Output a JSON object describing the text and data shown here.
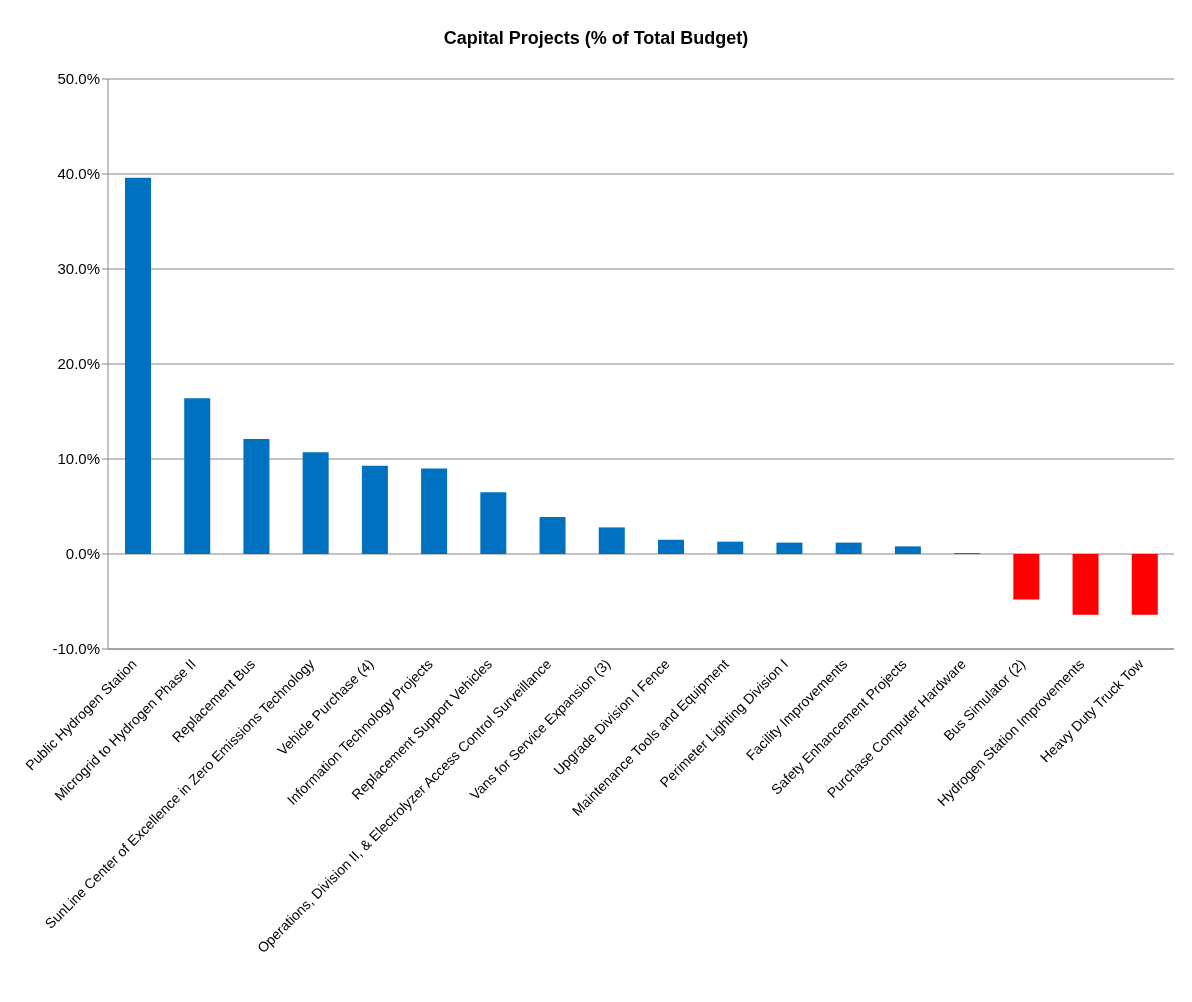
{
  "chart_data": {
    "type": "bar",
    "title": "Capital Projects (% of Total Budget)",
    "categories": [
      "Public Hydrogen Station",
      "Microgrid to Hydrogen Phase II",
      "Replacement Bus",
      "SunLine Center of Excellence in Zero Emissions Technology",
      "Vehicle Purchase (4)",
      "Information Technology Projects",
      "Replacement Support Vehicles",
      "Operations, Division II, & Electrolyzer Access Control Surveillance",
      "Vans for Service Expansion (3)",
      "Upgrade Division I Fence",
      "Maintenance Tools and Equipment",
      "Perimeter Lighting Division I",
      "Facility Improvements",
      "Safety Enhancement Projects",
      "Purchase Computer Hardware",
      "Bus Simulator (2)",
      "Hydrogen Station Improvements",
      "Heavy Duty Truck Tow"
    ],
    "values": [
      39.6,
      16.4,
      12.1,
      10.7,
      9.3,
      9.0,
      6.5,
      3.9,
      2.8,
      1.5,
      1.3,
      1.2,
      1.2,
      0.8,
      0.1,
      -4.8,
      -6.4,
      -6.4
    ],
    "colors": [
      "#0070c0",
      "#0070c0",
      "#0070c0",
      "#0070c0",
      "#0070c0",
      "#0070c0",
      "#0070c0",
      "#0070c0",
      "#0070c0",
      "#0070c0",
      "#0070c0",
      "#0070c0",
      "#0070c0",
      "#0070c0",
      "#0070c0",
      "#ff0000",
      "#ff0000",
      "#ff0000"
    ],
    "ylim": [
      -10,
      50
    ],
    "yticks": [
      {
        "value": -10,
        "label": "-10.0%"
      },
      {
        "value": 0,
        "label": "0.0%"
      },
      {
        "value": 10,
        "label": "10.0%"
      },
      {
        "value": 20,
        "label": "20.0%"
      },
      {
        "value": 30,
        "label": "30.0%"
      },
      {
        "value": 40,
        "label": "40.0%"
      },
      {
        "value": 50,
        "label": "50.0%"
      }
    ],
    "grid": "y",
    "legend": false
  }
}
